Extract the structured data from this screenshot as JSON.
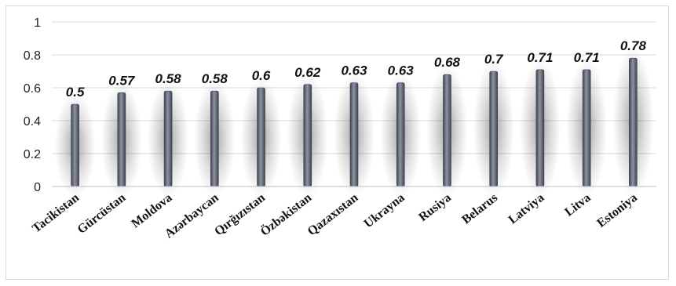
{
  "chart_data": {
    "type": "bar",
    "title": "",
    "xlabel": "",
    "ylabel": "",
    "ylim": [
      0,
      1
    ],
    "yticks": [
      "0",
      "0.2",
      "0.4",
      "0.6",
      "0.8",
      "1"
    ],
    "grid": true,
    "categories": [
      "Tacikistan",
      "Gürcüstan",
      "Moldova",
      "Azərbaycan",
      "Qırğızıstan",
      "Özbəkistan",
      "Qazaxıstan",
      "Ukrayna",
      "Rusiya",
      "Belarus",
      "Latviya",
      "Litva",
      "Estoniya"
    ],
    "values": [
      0.5,
      0.57,
      0.58,
      0.58,
      0.6,
      0.62,
      0.63,
      0.63,
      0.68,
      0.7,
      0.71,
      0.71,
      0.78
    ],
    "data_labels": [
      "0.5",
      "0.57",
      "0.58",
      "0.58",
      "0.6",
      "0.62",
      "0.63",
      "0.63",
      "0.68",
      "0.7",
      "0.71",
      "0.71",
      "0.78"
    ],
    "colors": {
      "bar": "#5b6070",
      "bar_highlight": "#8e93a3",
      "grid": "#d9d9d9",
      "axis": "#bfbfbf"
    }
  }
}
